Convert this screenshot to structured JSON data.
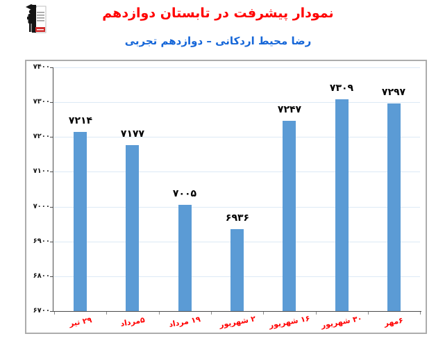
{
  "header": {
    "title": "نمودار پیشرفت در تابستان دوازدهم",
    "subtitle": "رضا محیط اردکانی – دوازدهم تجربی",
    "logo": "graduate-student-school-logo"
  },
  "colors": {
    "title_red": "#FF0000",
    "subtitle_blue": "#1566D8",
    "bar_blue": "#5B9BD5",
    "x_label_red": "#FF0000",
    "value_label_black": "#000000",
    "gridline_blue": "#DCE9F5",
    "axis_gray": "#4A4A4A",
    "chart_border_gray": "#ACACAC",
    "logo_red": "#D22E2E"
  },
  "chart_data": {
    "type": "bar",
    "title": "نمودار پیشرفت در تابستان دوازدهم",
    "subtitle": "رضا محیط اردکانی – دوازدهم تجربی",
    "categories": [
      "۲۹ تیر",
      "۵مرداد",
      "۱۹ مرداد",
      "۲ شهریور",
      "۱۶ شهریور",
      "۳۰ شهریور",
      "۶مهر"
    ],
    "values": [
      7214,
      7177,
      7005,
      6936,
      7247,
      7309,
      7297
    ],
    "value_labels": [
      "۷۲۱۴",
      "۷۱۷۷",
      "۷۰۰۵",
      "۶۹۳۶",
      "۷۲۴۷",
      "۷۳۰۹",
      "۷۲۹۷"
    ],
    "xlabel": "",
    "ylabel": "",
    "ylim": [
      6700,
      7400
    ],
    "y_ticks": [
      7400,
      7300,
      7200,
      7100,
      7000,
      6900,
      6800,
      6700
    ],
    "y_tick_labels": [
      "۷۴۰۰",
      "۷۳۰۰",
      "۷۲۰۰",
      "۷۱۰۰",
      "۷۰۰۰",
      "۶۹۰۰",
      "۶۸۰۰",
      "۶۷۰۰"
    ],
    "grid": true,
    "legend": null,
    "bar_color": "#5B9BD5"
  }
}
